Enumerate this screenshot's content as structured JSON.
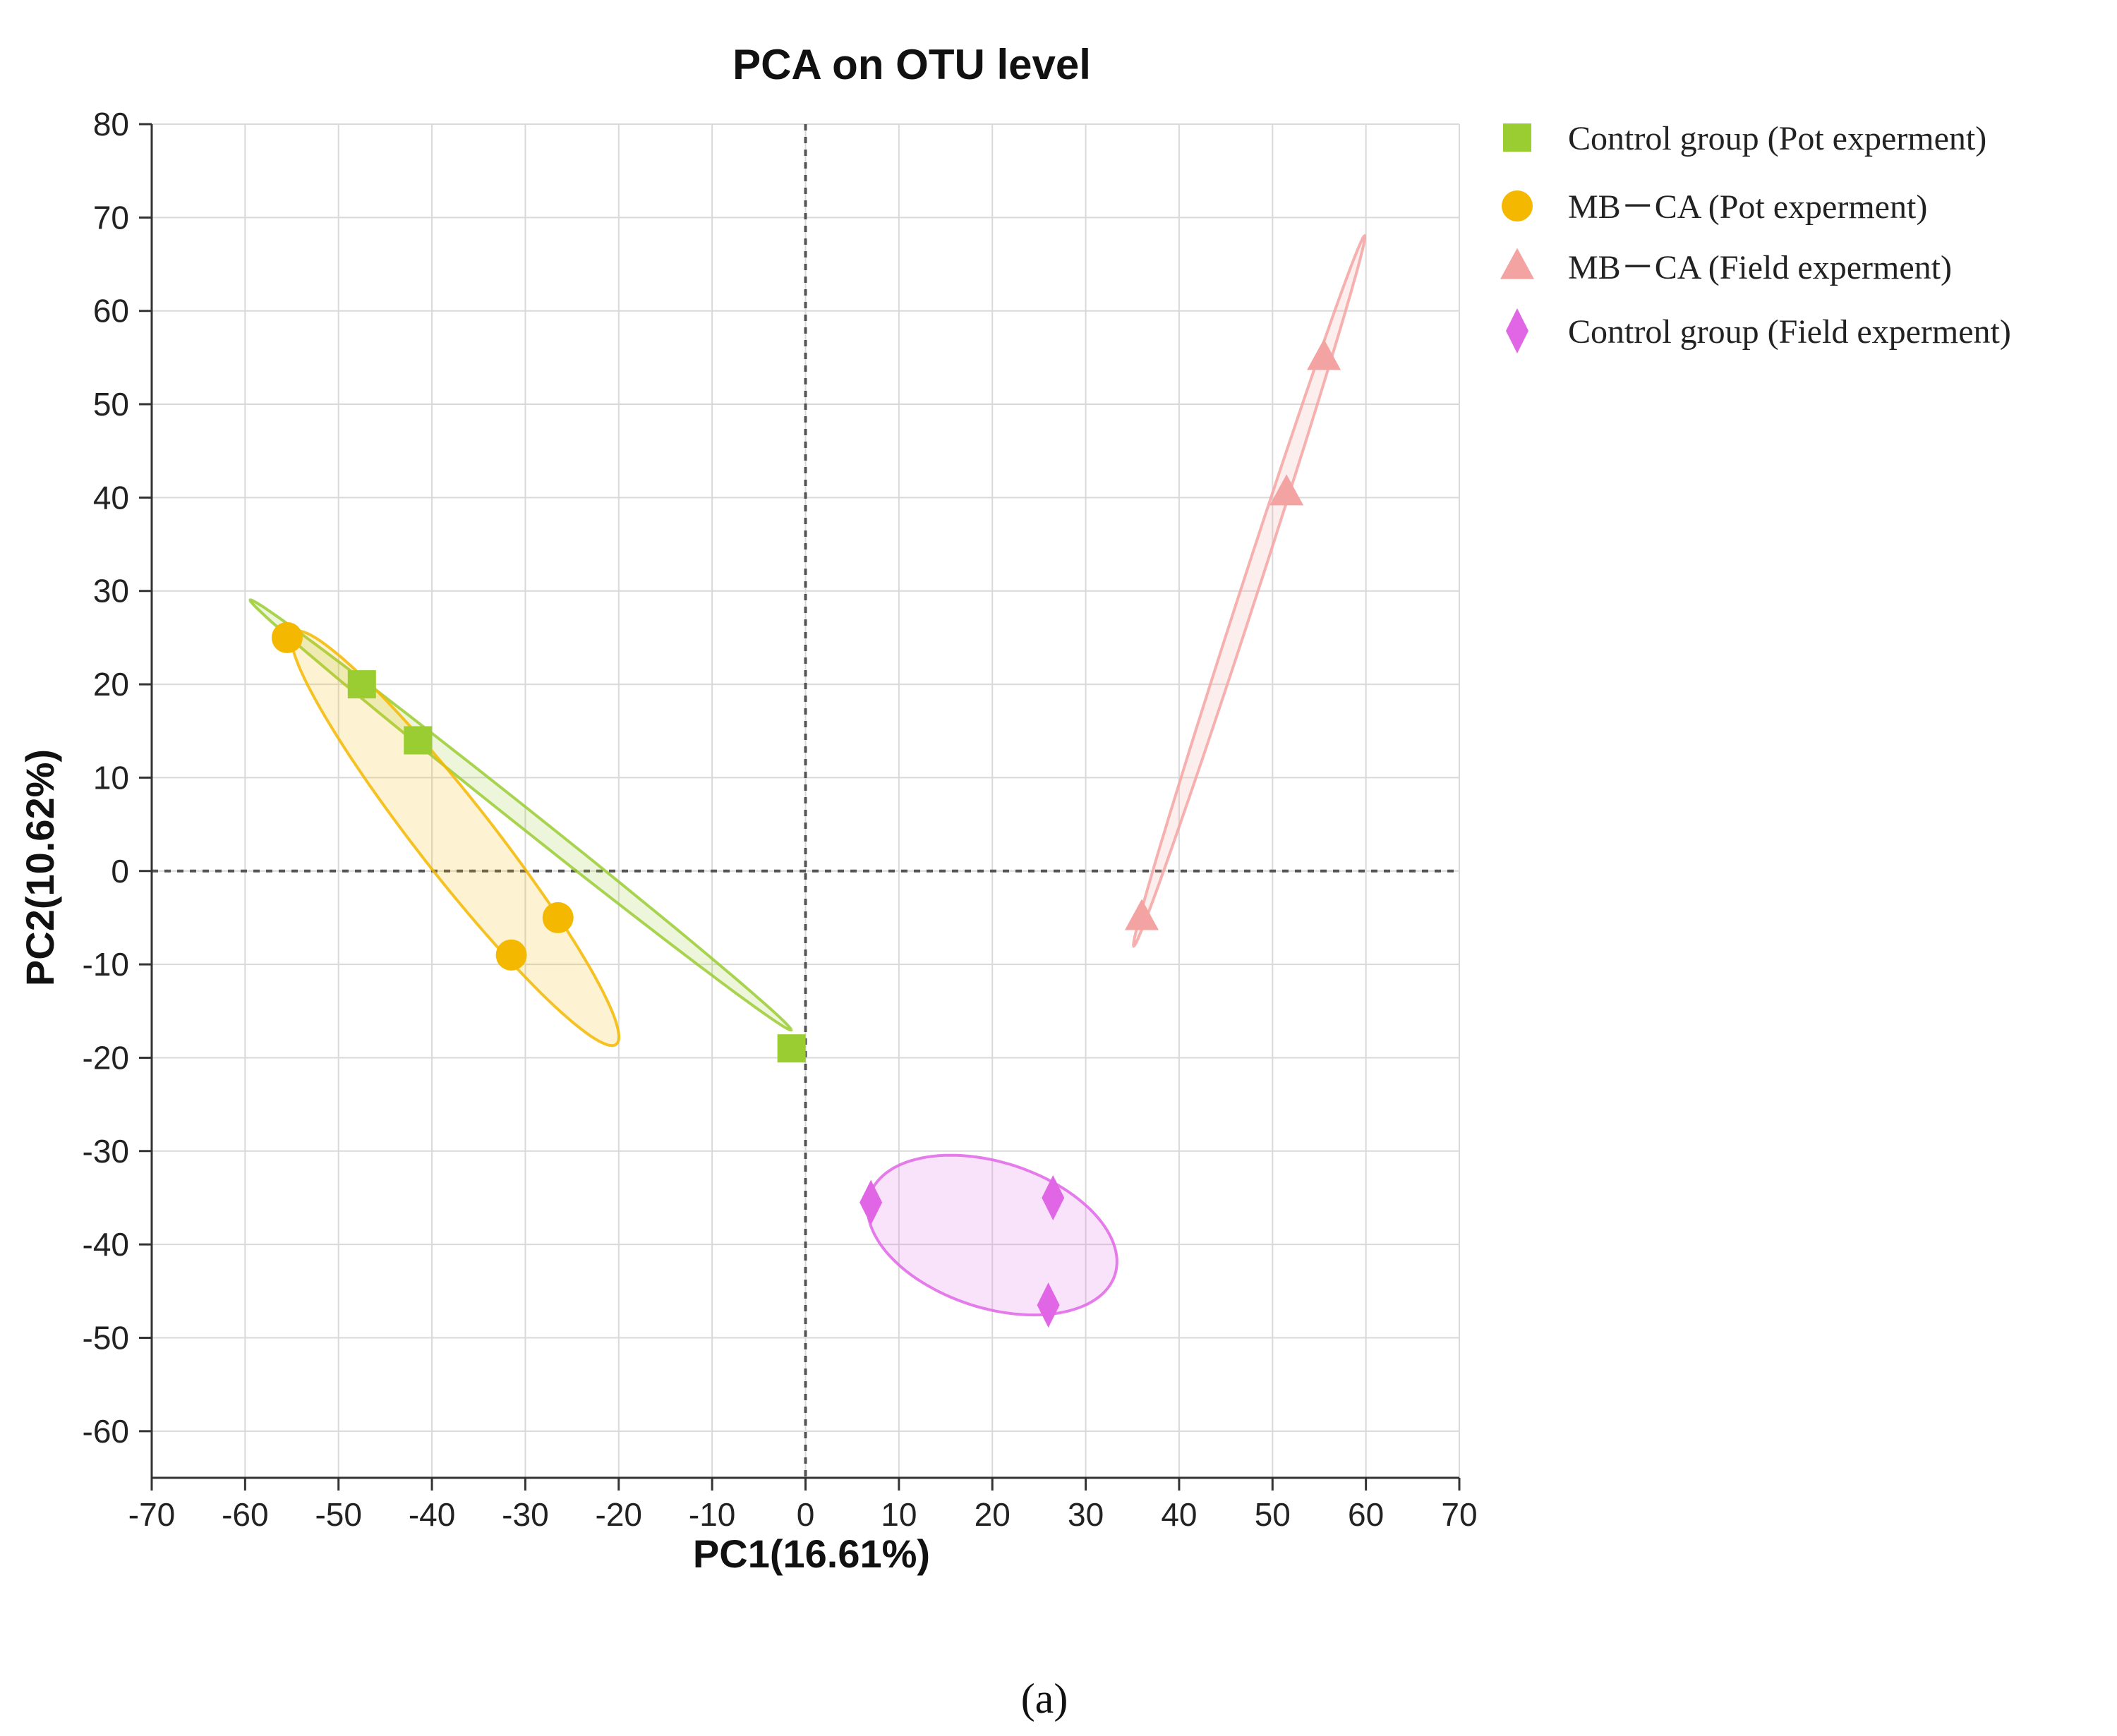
{
  "chart_data": {
    "type": "scatter",
    "title": "PCA on OTU level",
    "xlabel": "PC1(16.61%)",
    "ylabel": "PC2(10.62%)",
    "xlim": [
      -70,
      70
    ],
    "ylim": [
      -65,
      80
    ],
    "xticks": [
      -70,
      -60,
      -50,
      -40,
      -30,
      -20,
      -10,
      0,
      10,
      20,
      30,
      40,
      50,
      60,
      70
    ],
    "yticks": [
      80,
      70,
      60,
      50,
      40,
      30,
      20,
      10,
      0,
      -10,
      -20,
      -30,
      -40,
      -50,
      -60
    ],
    "grid": true,
    "reference_lines": {
      "x": 0,
      "y": 0,
      "style": "dashed"
    },
    "legend_position": "top-right, outside plot",
    "series": [
      {
        "name": "Control group (Pot experment)",
        "marker": "square",
        "color": "#9acd32",
        "points": [
          [
            -47.5,
            20.0
          ],
          [
            -41.5,
            14.0
          ],
          [
            -1.5,
            -19.0
          ]
        ],
        "ellipse": {
          "center": [
            -30.5,
            6.0
          ],
          "semi_major": 37.0,
          "semi_minor": 1.0,
          "angle_deg": -38.5
        }
      },
      {
        "name": "MB－CA (Pot experment)",
        "marker": "circle",
        "color": "#f5b800",
        "points": [
          [
            -55.5,
            25.0
          ],
          [
            -31.5,
            -9.0
          ],
          [
            -26.5,
            -5.0
          ]
        ],
        "ellipse": {
          "center": [
            -37.5,
            3.5
          ],
          "semi_major": 28.0,
          "semi_minor": 4.0,
          "angle_deg": -52
        }
      },
      {
        "name": "MB－CA  (Field experment)",
        "marker": "triangle",
        "color": "#f4a3a3",
        "points": [
          [
            51.5,
            40.5
          ],
          [
            55.5,
            55.0
          ],
          [
            36.0,
            -5.0
          ]
        ],
        "ellipse": {
          "center": [
            47.5,
            30.0
          ],
          "semi_major": 40.0,
          "semi_minor": 0.9,
          "angle_deg": 72
        }
      },
      {
        "name": "Control group (Field experment)",
        "marker": "diamond",
        "color": "#e066e6",
        "points": [
          [
            7.0,
            -35.5
          ],
          [
            26.5,
            -35.0
          ],
          [
            26.0,
            -46.5
          ]
        ],
        "ellipse": {
          "center": [
            20.0,
            -39.0
          ],
          "semi_major": 13.8,
          "semi_minor": 7.8,
          "angle_deg": -18
        }
      }
    ]
  },
  "caption": "(a)"
}
